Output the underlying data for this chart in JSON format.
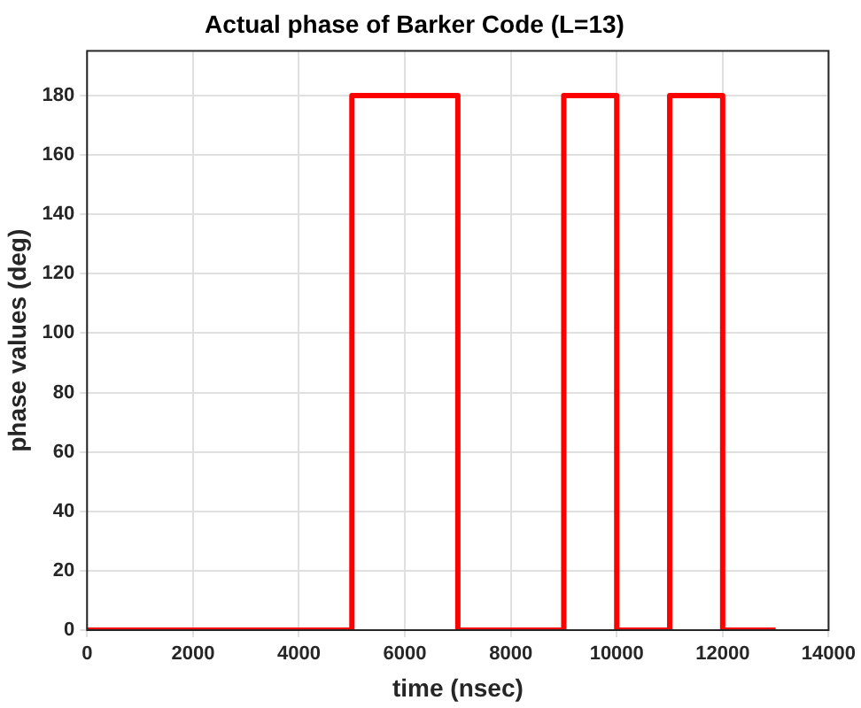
{
  "chart_data": {
    "type": "step",
    "title": "Actual phase of Barker Code (L=13)",
    "xlabel": "time (nsec)",
    "ylabel": "phase values (deg)",
    "x": [
      0,
      5000,
      7000,
      9000,
      10000,
      11000,
      12000,
      13000
    ],
    "series": [
      {
        "color": "#ff0000",
        "values": [
          0,
          180,
          0,
          180,
          0,
          180,
          0,
          0
        ]
      }
    ],
    "xlim": [
      0,
      14000
    ],
    "xticks": [
      0,
      2000,
      4000,
      6000,
      8000,
      10000,
      12000,
      14000
    ],
    "ylim": [
      0,
      195
    ],
    "yticks": [
      0,
      20,
      40,
      60,
      80,
      100,
      120,
      140,
      160,
      180
    ],
    "grid": true,
    "legend": false,
    "marker": "none",
    "line_style": "solid"
  }
}
